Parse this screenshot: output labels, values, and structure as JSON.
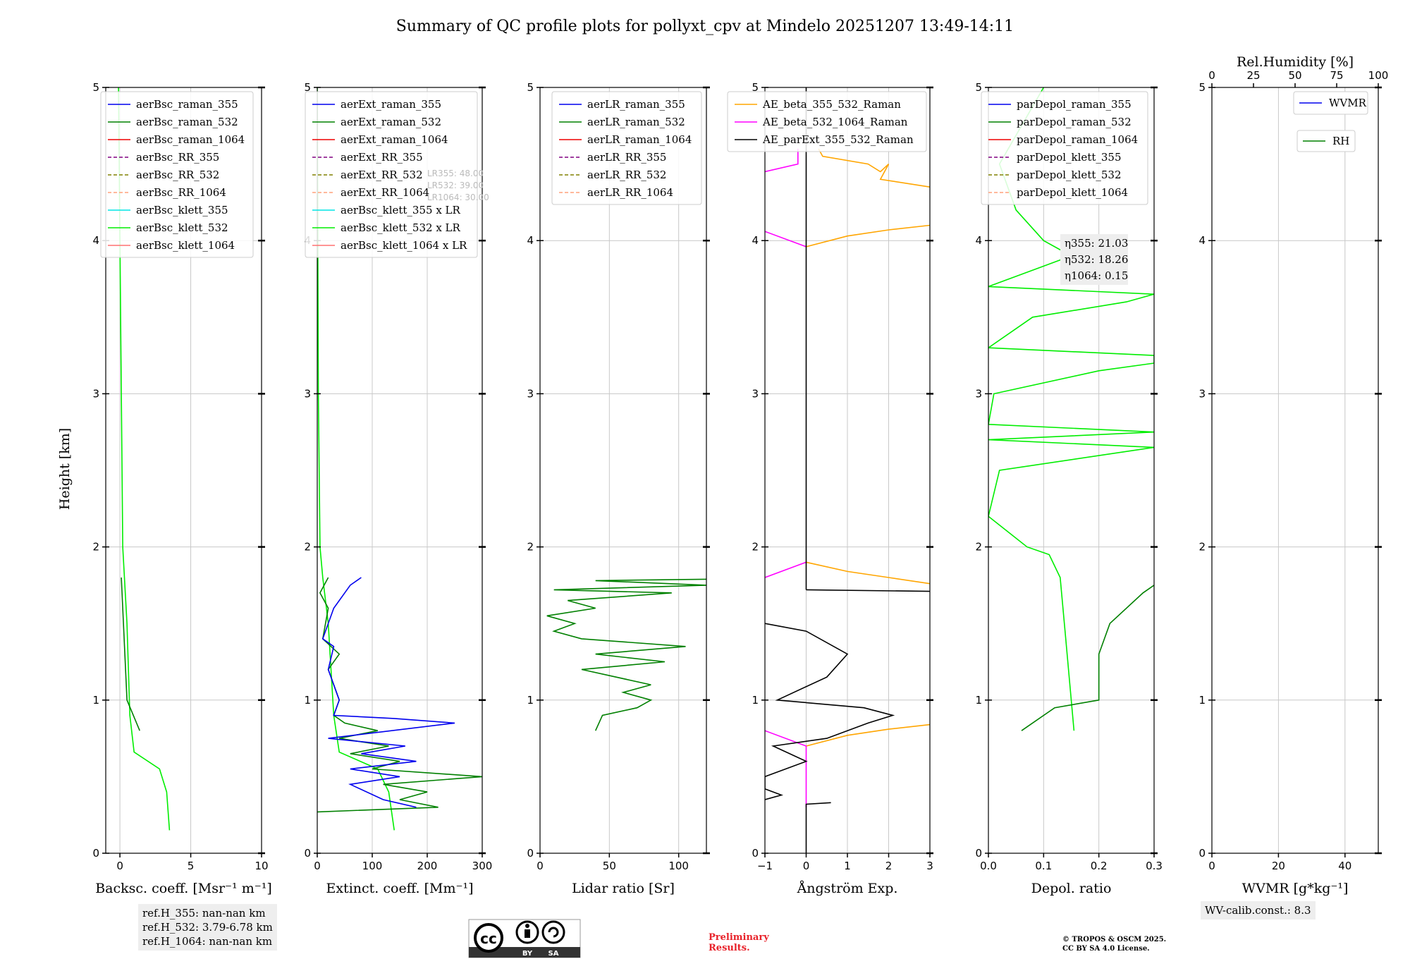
{
  "title": "Summary of QC profile plots for pollyxt_cpv at Mindelo 20251207 13:49-14:11",
  "y_axis": {
    "label": "Height [km]",
    "range": [
      0,
      5
    ],
    "ticks": [
      0,
      1,
      2,
      3,
      4,
      5
    ]
  },
  "chart_data": [
    {
      "type": "line",
      "id": "bsc",
      "xlabel": "Backsc. coeff. [Msr⁻¹ m⁻¹]",
      "xlim": [
        -1,
        10
      ],
      "xticks": [
        0,
        5,
        10
      ],
      "legend": [
        "aerBsc_raman_355",
        "aerBsc_raman_532",
        "aerBsc_raman_1064",
        "aerBsc_RR_355",
        "aerBsc_RR_532",
        "aerBsc_RR_1064",
        "aerBsc_klett_355",
        "aerBsc_klett_532",
        "aerBsc_klett_1064"
      ],
      "series": [
        {
          "name": "aerBsc_klett_532",
          "color": "#00ee00",
          "points": [
            [
              3.5,
              0.15
            ],
            [
              3.3,
              0.4
            ],
            [
              2.8,
              0.55
            ],
            [
              1.0,
              0.66
            ],
            [
              0.7,
              0.9
            ],
            [
              0.5,
              1.5
            ],
            [
              0.2,
              2.0
            ],
            [
              0.1,
              3.0
            ],
            [
              0.0,
              4.0
            ],
            [
              -0.1,
              5.0
            ]
          ]
        },
        {
          "name": "aerBsc_raman_532",
          "color": "#008000",
          "points": [
            [
              1.4,
              0.8
            ],
            [
              0.5,
              1.0
            ],
            [
              0.2,
              1.6
            ],
            [
              0.1,
              1.8
            ]
          ]
        }
      ]
    },
    {
      "type": "line",
      "id": "ext",
      "xlabel": "Extinct. coeff. [Mm⁻¹]",
      "xlim": [
        0,
        300
      ],
      "xticks": [
        0,
        100,
        200,
        300
      ],
      "legend": [
        "aerExt_raman_355",
        "aerExt_raman_532",
        "aerExt_raman_1064",
        "aerExt_RR_355",
        "aerExt_RR_532",
        "aerExt_RR_1064",
        "aerBsc_klett_355 x LR",
        "aerBsc_klett_532 x LR",
        "aerBsc_klett_1064 x LR"
      ],
      "lr_labels": [
        "LR355: 48.00",
        "LR532: 39.00",
        "LR1064: 30.00"
      ],
      "series": [
        {
          "name": "aerBsc_klett_532 x LR",
          "color": "#00ee00",
          "points": [
            [
              140,
              0.15
            ],
            [
              130,
              0.4
            ],
            [
              110,
              0.55
            ],
            [
              40,
              0.66
            ],
            [
              30,
              0.9
            ],
            [
              20,
              1.5
            ],
            [
              10,
              1.8
            ],
            [
              5,
              2.0
            ],
            [
              2,
              3.0
            ],
            [
              1,
              4.0
            ],
            [
              0,
              5.0
            ]
          ]
        },
        {
          "name": "aerExt_raman_532",
          "color": "#008000",
          "points": [
            [
              0,
              0.27
            ],
            [
              220,
              0.3
            ],
            [
              150,
              0.35
            ],
            [
              200,
              0.4
            ],
            [
              120,
              0.45
            ],
            [
              300,
              0.5
            ],
            [
              100,
              0.55
            ],
            [
              150,
              0.6
            ],
            [
              60,
              0.65
            ],
            [
              130,
              0.7
            ],
            [
              40,
              0.75
            ],
            [
              110,
              0.8
            ],
            [
              50,
              0.85
            ],
            [
              30,
              0.9
            ],
            [
              40,
              1.0
            ],
            [
              20,
              1.2
            ],
            [
              40,
              1.3
            ],
            [
              10,
              1.4
            ],
            [
              20,
              1.6
            ],
            [
              5,
              1.7
            ],
            [
              20,
              1.8
            ]
          ]
        },
        {
          "name": "aerExt_raman_355",
          "color": "#0000ee",
          "points": [
            [
              180,
              0.3
            ],
            [
              120,
              0.35
            ],
            [
              60,
              0.45
            ],
            [
              150,
              0.5
            ],
            [
              60,
              0.55
            ],
            [
              180,
              0.6
            ],
            [
              80,
              0.65
            ],
            [
              160,
              0.7
            ],
            [
              20,
              0.75
            ],
            [
              250,
              0.85
            ],
            [
              140,
              0.88
            ],
            [
              30,
              0.9
            ],
            [
              40,
              1.0
            ],
            [
              20,
              1.2
            ],
            [
              30,
              1.35
            ],
            [
              10,
              1.4
            ],
            [
              30,
              1.6
            ],
            [
              60,
              1.75
            ],
            [
              80,
              1.8
            ]
          ]
        }
      ]
    },
    {
      "type": "line",
      "id": "lr",
      "xlabel": "Lidar ratio [Sr]",
      "xlim": [
        0,
        120
      ],
      "xticks": [
        0,
        50,
        100
      ],
      "legend": [
        "aerLR_raman_355",
        "aerLR_raman_532",
        "aerLR_raman_1064",
        "aerLR_RR_355",
        "aerLR_RR_532",
        "aerLR_RR_1064"
      ],
      "series": [
        {
          "name": "aerLR_raman_532",
          "color": "#008000",
          "points": [
            [
              40,
              0.8
            ],
            [
              45,
              0.9
            ],
            [
              70,
              0.95
            ],
            [
              80,
              1.0
            ],
            [
              60,
              1.05
            ],
            [
              80,
              1.1
            ],
            [
              30,
              1.2
            ],
            [
              90,
              1.25
            ],
            [
              40,
              1.3
            ],
            [
              105,
              1.35
            ],
            [
              30,
              1.4
            ],
            [
              10,
              1.45
            ],
            [
              25,
              1.5
            ],
            [
              5,
              1.55
            ],
            [
              40,
              1.6
            ],
            [
              20,
              1.65
            ],
            [
              95,
              1.7
            ],
            [
              10,
              1.72
            ],
            [
              120,
              1.75
            ],
            [
              40,
              1.78
            ],
            [
              130,
              1.79
            ]
          ]
        }
      ]
    },
    {
      "type": "line",
      "id": "ae",
      "xlabel": "Ångström Exp.",
      "xlim": [
        -1,
        3
      ],
      "xticks": [
        -1,
        0,
        1,
        2,
        3
      ],
      "legend": [
        "AE_beta_355_532_Raman",
        "AE_beta_532_1064_Raman",
        "AE_parExt_355_532_Raman"
      ],
      "series": [
        {
          "name": "AE_beta_355_532_Raman",
          "color": "#ffa500",
          "points": [
            [
              0,
              0.7
            ],
            [
              1,
              0.77
            ],
            [
              2,
              0.81
            ],
            [
              3,
              0.84
            ]
          ]
        },
        {
          "name": "AE_beta_355_532_Raman_b",
          "color": "#ffa500",
          "points": [
            [
              0,
              1.9
            ],
            [
              1,
              1.84
            ],
            [
              2,
              1.8
            ],
            [
              3,
              1.76
            ]
          ]
        },
        {
          "name": "AE_beta_355_532_Raman_c",
          "color": "#ffa500",
          "points": [
            [
              0,
              3.96
            ],
            [
              1,
              4.03
            ],
            [
              2,
              4.07
            ],
            [
              3,
              4.1
            ]
          ]
        },
        {
          "name": "AE_beta_355_532_Raman_d",
          "color": "#ffa500",
          "points": [
            [
              0.3,
              4.6
            ],
            [
              0.4,
              4.55
            ],
            [
              1.5,
              4.5
            ],
            [
              1.8,
              4.45
            ],
            [
              2.0,
              4.5
            ],
            [
              1.8,
              4.4
            ],
            [
              3.0,
              4.35
            ]
          ]
        },
        {
          "name": "AE_beta_532_1064_Raman",
          "color": "#ff00ff",
          "points": [
            [
              -1,
              0.8
            ],
            [
              0,
              0.7
            ],
            [
              0,
              0.3
            ]
          ]
        },
        {
          "name": "AE_beta_532_1064_Raman_b",
          "color": "#ff00ff",
          "points": [
            [
              -1,
              1.8
            ],
            [
              0,
              1.9
            ]
          ]
        },
        {
          "name": "AE_beta_532_1064_Raman_c",
          "color": "#ff00ff",
          "points": [
            [
              -1,
              4.06
            ],
            [
              0,
              3.96
            ]
          ]
        },
        {
          "name": "AE_beta_532_1064_Raman_d",
          "color": "#ff00ff",
          "points": [
            [
              -1,
              4.45
            ],
            [
              -0.2,
              4.5
            ],
            [
              -0.2,
              4.6
            ]
          ]
        },
        {
          "name": "AE_parExt_355_532_Raman",
          "color": "#000000",
          "points": [
            [
              0,
              0
            ],
            [
              0,
              0.32
            ],
            [
              0.6,
              0.33
            ]
          ]
        },
        {
          "name": "AE_parExt_355_532_Raman_b",
          "color": "#000000",
          "points": [
            [
              -1,
              0.35
            ],
            [
              -0.6,
              0.38
            ],
            [
              -1,
              0.42
            ],
            [
              -1,
              0.5
            ],
            [
              0,
              0.6
            ],
            [
              -0.8,
              0.7
            ],
            [
              0.5,
              0.75
            ],
            [
              1.5,
              0.85
            ],
            [
              2.1,
              0.9
            ],
            [
              1.4,
              0.95
            ],
            [
              -0.7,
              1.0
            ],
            [
              0.5,
              1.15
            ],
            [
              1.0,
              1.3
            ],
            [
              0,
              1.45
            ],
            [
              -1,
              1.5
            ]
          ]
        },
        {
          "name": "AE_parExt_355_532_Raman_c",
          "color": "#000000",
          "points": [
            [
              0,
              1.72
            ],
            [
              0,
              5.0
            ]
          ]
        },
        {
          "name": "AE_parExt_355_532_Raman_d",
          "color": "#000000",
          "points": [
            [
              0,
              1.72
            ],
            [
              3,
              1.71
            ]
          ]
        }
      ]
    },
    {
      "type": "line",
      "id": "dep",
      "xlabel": "Depol. ratio",
      "xlim": [
        0,
        0.3
      ],
      "xticks": [
        0.0,
        0.1,
        0.2,
        0.3
      ],
      "xtick_labels": [
        "0.0",
        "0.1",
        "0.2",
        "0.3"
      ],
      "legend": [
        "parDepol_raman_355",
        "parDepol_raman_532",
        "parDepol_raman_1064",
        "parDepol_klett_355",
        "parDepol_klett_532",
        "parDepol_klett_1064"
      ],
      "eta_labels": [
        "η355: 21.03",
        "η532: 18.26",
        "η1064: 0.15"
      ],
      "series": [
        {
          "name": "parDepol_klett_532",
          "color": "#00ee00",
          "points": [
            [
              0.155,
              0.8
            ],
            [
              0.15,
              1.0
            ],
            [
              0.14,
              1.4
            ],
            [
              0.13,
              1.8
            ],
            [
              0.11,
              1.95
            ],
            [
              0.07,
              2.0
            ],
            [
              0.0,
              2.2
            ],
            [
              0.02,
              2.5
            ],
            [
              0.3,
              2.65
            ],
            [
              0.0,
              2.7
            ],
            [
              0.3,
              2.75
            ],
            [
              0.0,
              2.8
            ],
            [
              0.01,
              3.0
            ],
            [
              0.2,
              3.15
            ],
            [
              0.3,
              3.2
            ],
            [
              0.3,
              3.25
            ],
            [
              0.0,
              3.3
            ],
            [
              0.08,
              3.5
            ],
            [
              0.25,
              3.6
            ],
            [
              0.3,
              3.65
            ],
            [
              0.0,
              3.7
            ],
            [
              0.15,
              3.9
            ],
            [
              0.1,
              4.0
            ],
            [
              0.05,
              4.2
            ],
            [
              0.02,
              4.5
            ],
            [
              0.1,
              5.0
            ]
          ]
        },
        {
          "name": "parDepol_raman_532",
          "color": "#008000",
          "points": [
            [
              0.06,
              0.8
            ],
            [
              0.12,
              0.95
            ],
            [
              0.2,
              1.0
            ],
            [
              0.2,
              1.3
            ],
            [
              0.22,
              1.5
            ],
            [
              0.28,
              1.7
            ],
            [
              0.3,
              1.75
            ]
          ]
        }
      ]
    },
    {
      "type": "line",
      "id": "wv",
      "xlabel": "WVMR [g*kg⁻¹]",
      "xlim": [
        0,
        50
      ],
      "xticks": [
        0,
        20,
        40
      ],
      "top_axis": {
        "label": "Rel.Humidity [%]",
        "range": [
          0,
          100
        ],
        "ticks": [
          0,
          25,
          50,
          75,
          100
        ]
      },
      "legend": [
        "WVMR",
        "RH"
      ],
      "series": []
    }
  ],
  "notes": {
    "ref_heights": [
      "ref.H_355: nan-nan km",
      "ref.H_532: 3.79-6.78 km",
      "ref.H_1064: nan-nan km"
    ],
    "wv_calib": "WV-calib.const.: 8.3",
    "preliminary": [
      "Preliminary",
      "Results."
    ],
    "copyright": [
      "© TROPOS & OSCM 2025.",
      "CC BY SA 4.0 License."
    ],
    "cc_badge": [
      "BY",
      "SA"
    ]
  },
  "legend_styles": {
    "aerBsc_raman_355": {
      "c": "#0000ee",
      "d": ""
    },
    "aerBsc_raman_532": {
      "c": "#008000",
      "d": ""
    },
    "aerBsc_raman_1064": {
      "c": "#ee0000",
      "d": ""
    },
    "aerBsc_RR_355": {
      "c": "#800080",
      "d": "5,3"
    },
    "aerBsc_RR_532": {
      "c": "#808000",
      "d": "5,3"
    },
    "aerBsc_RR_1064": {
      "c": "#ffa07a",
      "d": "5,3"
    },
    "aerBsc_klett_355": {
      "c": "#00e5e5",
      "d": ""
    },
    "aerBsc_klett_532": {
      "c": "#00ee00",
      "d": ""
    },
    "aerBsc_klett_1064": {
      "c": "#ff7070",
      "d": ""
    }
  }
}
